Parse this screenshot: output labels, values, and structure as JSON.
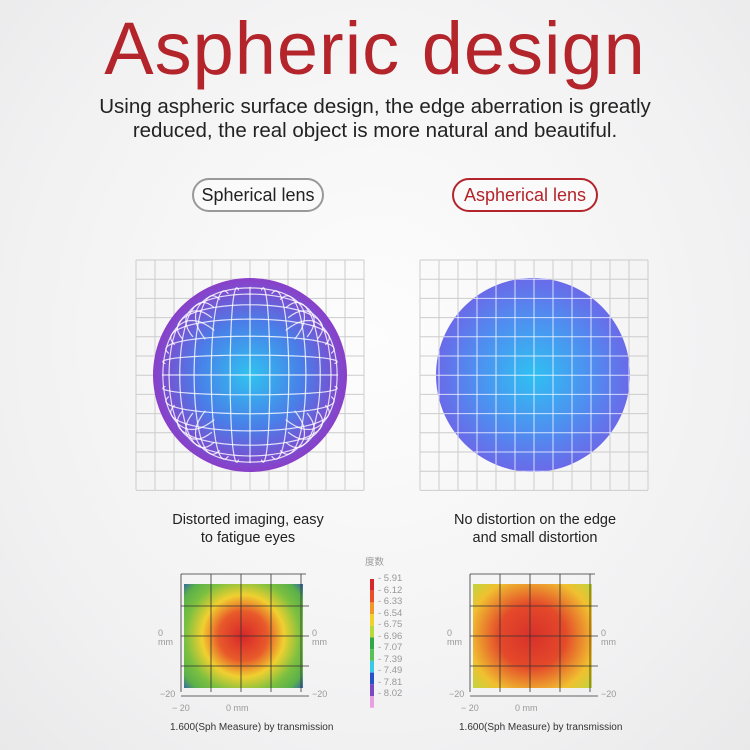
{
  "title": "Aspheric design",
  "subtitle": [
    "Using aspheric surface design, the edge aberration is greatly",
    "reduced, the real object is more natural and beautiful."
  ],
  "spherical": {
    "label": "Spherical lens",
    "caption": [
      "Distorted imaging, easy",
      "to fatigue eyes"
    ]
  },
  "aspherical": {
    "label": "Aspherical lens",
    "caption": [
      "No distortion on the edge",
      "and small distortion"
    ]
  },
  "map": {
    "caption": "1.600(Sph Measure) by transmission",
    "x_left": "− 20",
    "x_mid": "0 mm",
    "y_bottom": "−20",
    "y_mid": "0",
    "y_unit": "mm",
    "right_bottom": "−20"
  },
  "legend": {
    "title": "度数",
    "values": [
      "5.91",
      "6.12",
      "6.33",
      "6.54",
      "6.75",
      "6.96",
      "7.07",
      "7.39",
      "7.49",
      "7.81",
      "8.02"
    ],
    "colors": [
      "#d8262a",
      "#e8502a",
      "#f0962a",
      "#f0d02a",
      "#b9d83a",
      "#2fa84a",
      "#5ac05a",
      "#3ac8e8",
      "#2a50c8",
      "#7a48c0",
      "#e8a0e0"
    ]
  },
  "colors": {
    "accent": "#b3242b"
  }
}
